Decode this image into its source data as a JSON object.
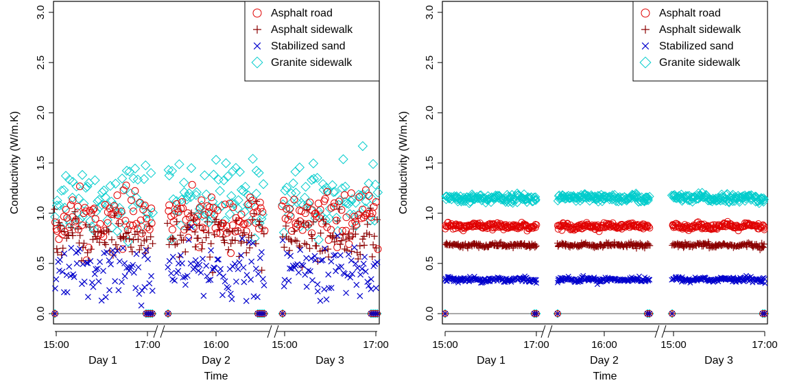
{
  "chart_data": [
    {
      "type": "scatter",
      "panel": "left",
      "ylabel": "Conductivity (W/m.K)",
      "xlabel": "Time",
      "ylim": [
        0,
        3
      ],
      "yticks": [
        "0.0",
        "0.5",
        "1.0",
        "1.5",
        "2.0",
        "2.5",
        "3.0"
      ],
      "x_axis_breaks": true,
      "days": [
        {
          "label": "Day 1",
          "tick_labels": [
            "15:00",
            "17:00"
          ]
        },
        {
          "label": "Day 2",
          "tick_labels": [
            "16:00"
          ]
        },
        {
          "label": "Day 3",
          "tick_labels": [
            "15:00",
            "17:00"
          ]
        }
      ],
      "grid": false,
      "legend_position": "top-right",
      "series": [
        {
          "name": "Asphalt road",
          "marker": "circle",
          "color": "#e00000",
          "approx_mean": 0.95,
          "approx_spread": 0.12
        },
        {
          "name": "Asphalt sidewalk",
          "marker": "plus",
          "color": "#8b0000",
          "approx_mean": 0.75,
          "approx_spread": 0.12
        },
        {
          "name": "Stabilized sand",
          "marker": "x",
          "color": "#0000cc",
          "approx_mean": 0.42,
          "approx_spread": 0.14
        },
        {
          "name": "Granite sidewalk",
          "marker": "diamond",
          "color": "#00cccc",
          "approx_mean": 1.15,
          "approx_spread": 0.18
        }
      ]
    },
    {
      "type": "scatter",
      "panel": "right",
      "ylabel": "Conductivity (W/m.K)",
      "xlabel": "Time",
      "ylim": [
        0,
        3
      ],
      "yticks": [
        "0.0",
        "0.5",
        "1.0",
        "1.5",
        "2.0",
        "2.5",
        "3.0"
      ],
      "x_axis_breaks": true,
      "days": [
        {
          "label": "Day 1",
          "tick_labels": [
            "15:00",
            "17:00"
          ]
        },
        {
          "label": "Day 2",
          "tick_labels": [
            "16:00"
          ]
        },
        {
          "label": "Day 3",
          "tick_labels": [
            "15:00",
            "17:00"
          ]
        }
      ],
      "grid": false,
      "legend_position": "top-right",
      "series": [
        {
          "name": "Asphalt road",
          "marker": "circle",
          "color": "#e00000",
          "approx_mean": 0.87,
          "approx_spread": 0.015
        },
        {
          "name": "Asphalt sidewalk",
          "marker": "plus",
          "color": "#8b0000",
          "approx_mean": 0.68,
          "approx_spread": 0.012
        },
        {
          "name": "Stabilized sand",
          "marker": "x",
          "color": "#0000cc",
          "approx_mean": 0.34,
          "approx_spread": 0.012
        },
        {
          "name": "Granite sidewalk",
          "marker": "diamond",
          "color": "#00cccc",
          "approx_mean": 1.15,
          "approx_spread": 0.02
        }
      ]
    }
  ]
}
